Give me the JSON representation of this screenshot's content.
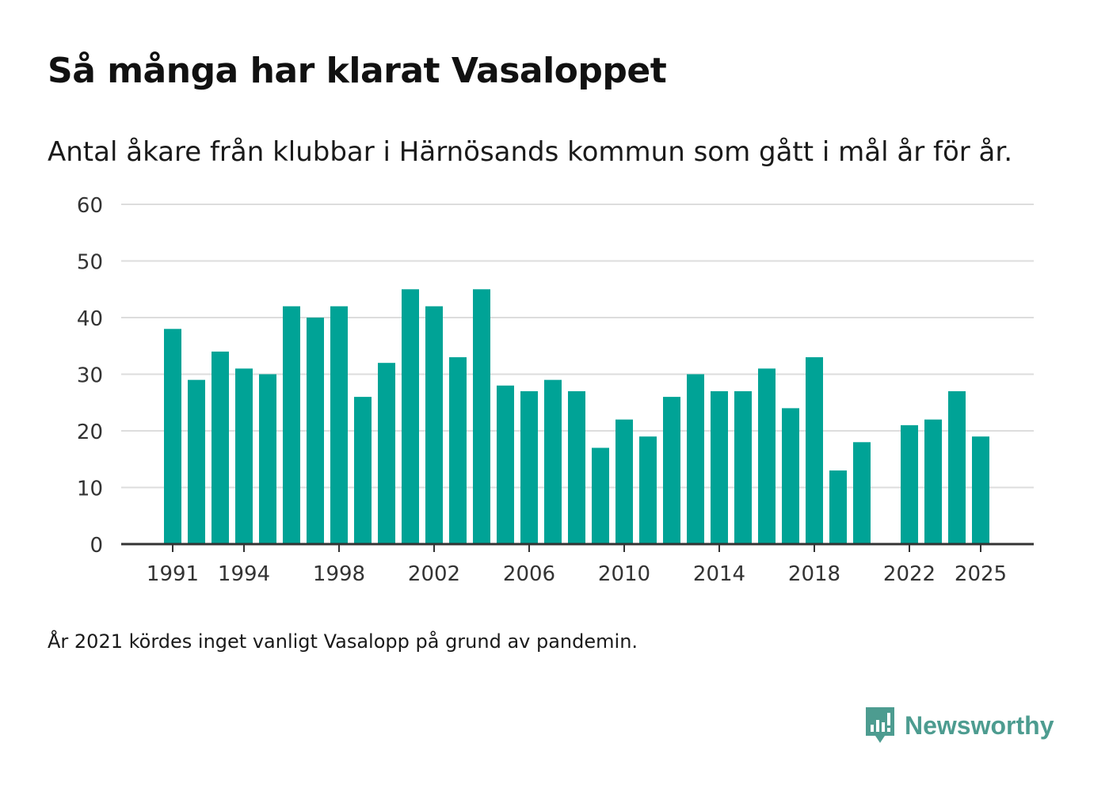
{
  "header": {
    "title": "Så många har klarat Vasaloppet",
    "subtitle": "Antal åkare från klubbar i Härnösands kommun som gått i mål år för år."
  },
  "footer": {
    "note": "År 2021 kördes inget vanligt Vasalopp på grund av pandemin.",
    "brand": "Newsworthy",
    "brand_icon": "newsworthy-logo-icon"
  },
  "colors": {
    "bar": "#00a396",
    "grid": "#dddddd",
    "axis": "#333333",
    "text": "#333333",
    "brand": "#4d9c90"
  },
  "chart_data": {
    "type": "bar",
    "title": "Så många har klarat Vasaloppet",
    "xlabel": "",
    "ylabel": "",
    "ylim": [
      0,
      60
    ],
    "yticks": [
      0,
      10,
      20,
      30,
      40,
      50,
      60
    ],
    "xticks": [
      "1991",
      "1994",
      "1998",
      "2002",
      "2006",
      "2010",
      "2014",
      "2018",
      "2022",
      "2025"
    ],
    "grid": true,
    "categories": [
      "1991",
      "1992",
      "1993",
      "1994",
      "1995",
      "1996",
      "1997",
      "1998",
      "1999",
      "2000",
      "2001",
      "2002",
      "2003",
      "2004",
      "2005",
      "2006",
      "2007",
      "2008",
      "2009",
      "2010",
      "2011",
      "2012",
      "2013",
      "2014",
      "2015",
      "2016",
      "2017",
      "2018",
      "2019",
      "2020",
      "2021",
      "2022",
      "2023",
      "2024",
      "2025"
    ],
    "values": [
      38,
      29,
      34,
      31,
      30,
      42,
      40,
      42,
      26,
      32,
      45,
      42,
      33,
      45,
      28,
      27,
      29,
      27,
      17,
      22,
      19,
      26,
      30,
      27,
      27,
      31,
      24,
      33,
      13,
      18,
      0,
      21,
      22,
      27,
      19
    ]
  }
}
